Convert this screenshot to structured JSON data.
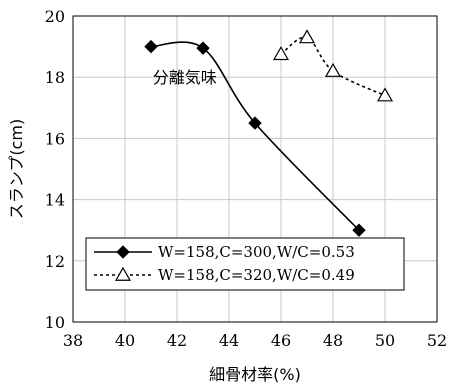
{
  "chart_data": {
    "type": "line",
    "xlabel": "細骨材率(%)",
    "ylabel": "スランプ(cm)",
    "xlim": [
      38,
      52
    ],
    "ylim": [
      10,
      20
    ],
    "x_ticks": [
      38,
      40,
      42,
      44,
      46,
      48,
      50,
      52
    ],
    "y_ticks": [
      10,
      12,
      14,
      16,
      18,
      20
    ],
    "grid": true,
    "legend_position": "bottom-right",
    "annotations": [
      {
        "text": "分離気味",
        "x": 42.3,
        "y": 18
      }
    ],
    "series": [
      {
        "name": "W=158,C=300,W/C=0.53",
        "marker": "filled-diamond",
        "line_style": "solid",
        "color": "#000000",
        "points": [
          [
            41,
            19
          ],
          [
            43,
            18.95
          ],
          [
            45,
            16.5
          ],
          [
            49,
            13
          ]
        ]
      },
      {
        "name": "W=158,C=320,W/C=0.49",
        "marker": "open-triangle",
        "line_style": "dotted",
        "color": "#000000",
        "points": [
          [
            46,
            18.75
          ],
          [
            47,
            19.3
          ],
          [
            48,
            18.2
          ],
          [
            50,
            17.4
          ]
        ]
      }
    ]
  }
}
